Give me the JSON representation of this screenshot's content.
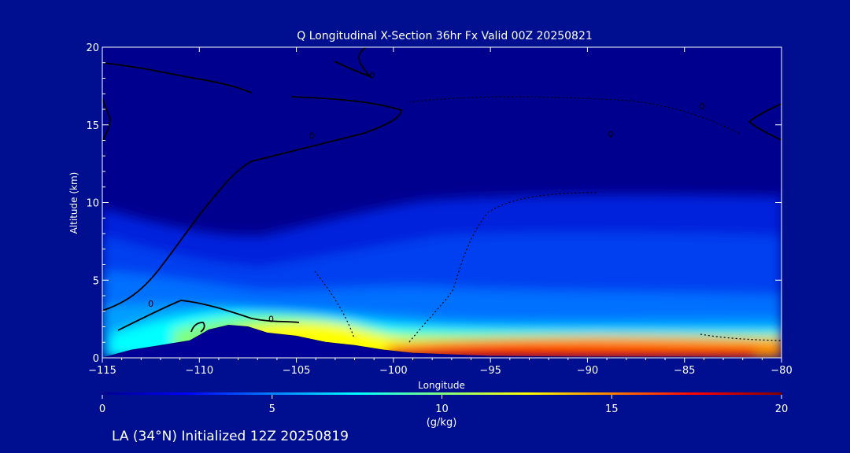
{
  "chart_data": {
    "type": "heatmap",
    "title": "Q Longitudinal X-Section 36hr  Fx Valid 00Z 20250821",
    "subtitle": "LA (34°N) Initialized 12Z 20250819",
    "xlabel": "Longitude",
    "ylabel": "Altitude (km)",
    "xlim": [
      -115,
      -80
    ],
    "ylim": [
      0,
      20
    ],
    "x_ticks": [
      -115,
      -110,
      -105,
      -100,
      -95,
      -90,
      -85,
      -80
    ],
    "y_ticks": [
      0,
      5,
      10,
      15,
      20
    ],
    "colorbar": {
      "label": "(g/kg)",
      "range": [
        0,
        20
      ],
      "ticks": [
        0,
        5,
        10,
        15,
        20
      ],
      "colors": [
        "#00008f",
        "#0000ff",
        "#0080ff",
        "#00ffff",
        "#80ff80",
        "#ffff00",
        "#ff8000",
        "#ff0000",
        "#800000"
      ]
    },
    "contour_labels": [
      {
        "text": "0",
        "lon": -112.5,
        "alt": 3.3
      },
      {
        "text": "0",
        "lon": -106.3,
        "alt": 2.3
      },
      {
        "text": "0",
        "lon": -104.2,
        "alt": 14.1
      },
      {
        "text": "0",
        "lon": -101.1,
        "alt": 18.0
      },
      {
        "text": "0",
        "lon": -88.8,
        "alt": 14.2
      },
      {
        "text": "0",
        "lon": -84.1,
        "alt": 16.0
      }
    ],
    "terrain": [
      {
        "lon": -115.0,
        "alt": 0.0
      },
      {
        "lon": -113.5,
        "alt": 0.5
      },
      {
        "lon": -112.0,
        "alt": 0.8
      },
      {
        "lon": -110.5,
        "alt": 1.1
      },
      {
        "lon": -109.5,
        "alt": 1.8
      },
      {
        "lon": -108.5,
        "alt": 2.1
      },
      {
        "lon": -107.5,
        "alt": 2.0
      },
      {
        "lon": -106.5,
        "alt": 1.6
      },
      {
        "lon": -105.0,
        "alt": 1.4
      },
      {
        "lon": -103.5,
        "alt": 1.0
      },
      {
        "lon": -102.0,
        "alt": 0.8
      },
      {
        "lon": -100.5,
        "alt": 0.5
      },
      {
        "lon": -99.0,
        "alt": 0.3
      },
      {
        "lon": -97.0,
        "alt": 0.2
      },
      {
        "lon": -95.0,
        "alt": 0.1
      },
      {
        "lon": -90.0,
        "alt": 0.05
      },
      {
        "lon": -85.0,
        "alt": 0.05
      },
      {
        "lon": -80.0,
        "alt": 0.0
      }
    ]
  }
}
